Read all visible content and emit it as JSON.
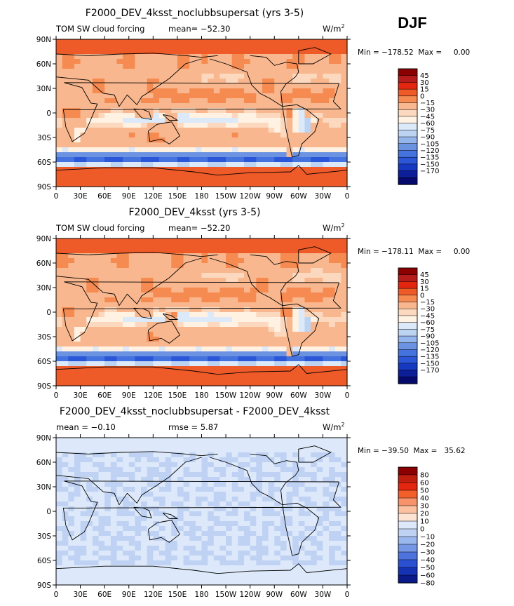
{
  "season": "DJF",
  "lat_ticks": [
    "90N",
    "60N",
    "30N",
    "0",
    "30S",
    "60S",
    "90S"
  ],
  "lon_ticks": [
    "0",
    "30E",
    "60E",
    "90E",
    "120E",
    "150E",
    "180",
    "150W",
    "120W",
    "90W",
    "60W",
    "30W",
    "0"
  ],
  "colors_main": [
    "#8b0000",
    "#b71c1c",
    "#e3260f",
    "#ee5a28",
    "#f68b52",
    "#f8b78e",
    "#fcd9be",
    "#fff2e3",
    "#dbe9f8",
    "#bcd3f2",
    "#94b5ec",
    "#6b93e2",
    "#4472de",
    "#2b56d7",
    "#1738c1",
    "#0c1e98",
    "#050a6c"
  ],
  "colors_diff": [
    "#8b0000",
    "#c01f10",
    "#e3260f",
    "#f25f2b",
    "#f7936b",
    "#fac0a0",
    "#fde3d2",
    "#dde9fa",
    "#bfd2f3",
    "#9bb8ee",
    "#7597e5",
    "#4e73dc",
    "#2b50d2",
    "#1532b4",
    "#0a1a88"
  ],
  "panels": [
    {
      "title": "F2000_DEV_4ksst_noclubbsupersat (yrs 3-5)",
      "left_label": "TOM SW cloud forcing",
      "mid_label": "mean= −52.30",
      "units": "W/m",
      "units_exp": "2",
      "minmax": "Min = −178.52  Max =     0.00",
      "field_type": "main",
      "levels": [
        "45",
        "30",
        "15",
        "0",
        "−15",
        "−30",
        "−45",
        "−60",
        "−75",
        "−90",
        "−105",
        "−120",
        "−135",
        "−150",
        "−170"
      ]
    },
    {
      "title": "F2000_DEV_4ksst (yrs 3-5)",
      "left_label": "TOM SW cloud forcing",
      "mid_label": "mean= −52.20",
      "units": "W/m",
      "units_exp": "2",
      "minmax": "Min = −178.11  Max =     0.00",
      "field_type": "main",
      "levels": [
        "45",
        "30",
        "15",
        "0",
        "−15",
        "−30",
        "−45",
        "−60",
        "−75",
        "−90",
        "−105",
        "−120",
        "−135",
        "−150",
        "−170"
      ]
    },
    {
      "title": "F2000_DEV_4ksst_noclubbsupersat - F2000_DEV_4ksst",
      "left_label": "mean =   −0.10",
      "mid_label": "rmse =    5.87",
      "units": "W/m",
      "units_exp": "2",
      "minmax": "Min = −39.50  Max =   35.62",
      "field_type": "diff",
      "levels": [
        "80",
        "60",
        "50",
        "40",
        "30",
        "20",
        "10",
        "0",
        "−10",
        "−20",
        "−30",
        "−40",
        "−50",
        "−60",
        "−80"
      ]
    }
  ],
  "chart_data": {
    "type": "heatmap",
    "title": "DJF",
    "x": "longitude 0–360",
    "y": "latitude −90–90",
    "panels_summary": [
      {
        "name": "F2000_DEV_4ksst_noclubbsupersat (yrs 3-5)",
        "mean": -52.3,
        "min": -178.52,
        "max": 0.0
      },
      {
        "name": "F2000_DEV_4ksst (yrs 3-5)",
        "mean": -52.2,
        "min": -178.11,
        "max": 0.0
      },
      {
        "name": "F2000_DEV_4ksst_noclubbsupersat - F2000_DEV_4ksst",
        "mean": -0.1,
        "rmse": 5.87,
        "min": -39.5,
        "max": 35.62
      }
    ]
  }
}
